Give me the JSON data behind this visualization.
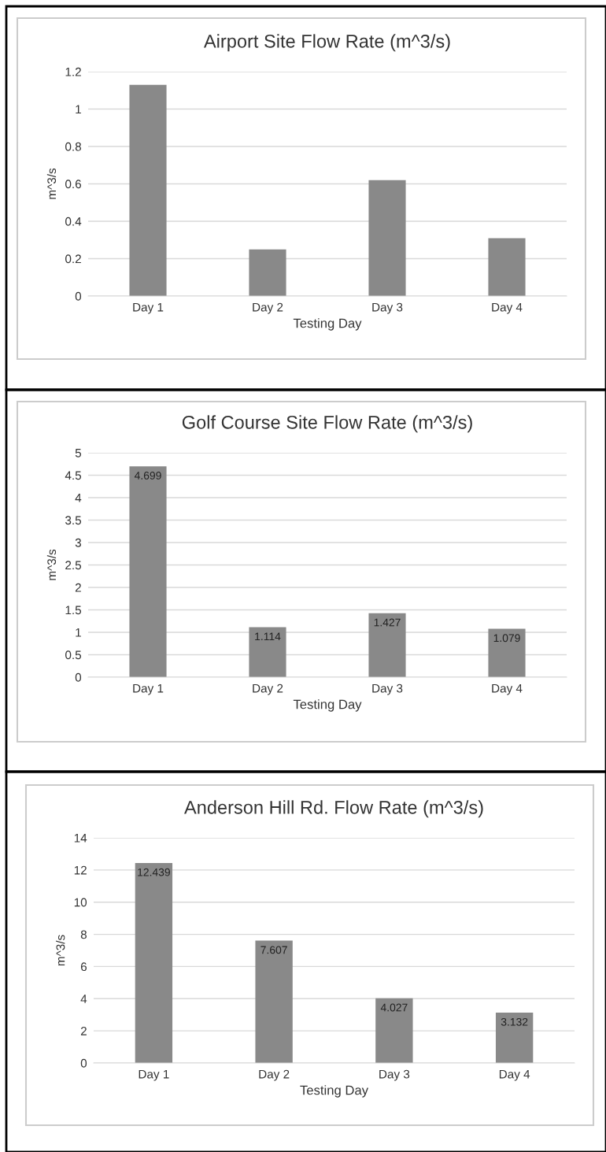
{
  "chart_data": [
    {
      "type": "bar",
      "title": "Airport Site Flow Rate (m^3/s)",
      "xlabel": "Testing Day",
      "ylabel": "m^3/s",
      "categories": [
        "Day 1",
        "Day 2",
        "Day 3",
        "Day 4"
      ],
      "values": [
        1.13,
        0.25,
        0.62,
        0.31
      ],
      "color": "#898989",
      "ylim": [
        0,
        1.2
      ],
      "yticks": [
        0,
        0.2,
        0.4,
        0.6,
        0.8,
        1,
        1.2
      ],
      "grid": "y"
    },
    {
      "type": "bar",
      "title": "Golf Course Site Flow Rate (m^3/s)",
      "xlabel": "Testing Day",
      "ylabel": "m^3/s",
      "categories": [
        "Day 1",
        "Day 2",
        "Day 3",
        "Day 4"
      ],
      "values": [
        4.699,
        1.114,
        1.427,
        1.079
      ],
      "color": "#898989",
      "ylim": [
        0,
        5
      ],
      "yticks": [
        0,
        0.5,
        1,
        1.5,
        2,
        2.5,
        3,
        3.5,
        4,
        4.5,
        5
      ],
      "grid": "y",
      "data_labels": true
    },
    {
      "type": "bar",
      "title": "Anderson Hill Rd. Flow Rate (m^3/s)",
      "xlabel": "Testing Day",
      "ylabel": "m^3/s",
      "categories": [
        "Day 1",
        "Day 2",
        "Day 3",
        "Day 4"
      ],
      "values": [
        12.439,
        7.607,
        4.027,
        3.132
      ],
      "color": "#898989",
      "ylim": [
        0,
        14
      ],
      "yticks": [
        0,
        2,
        4,
        6,
        8,
        10,
        12,
        14
      ],
      "grid": "y",
      "data_labels": true
    }
  ]
}
